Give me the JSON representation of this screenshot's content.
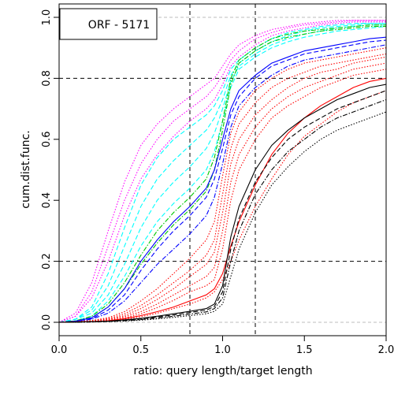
{
  "chart_data": {
    "type": "line",
    "legend_text": "ORF - 5171",
    "legend_placement": "top-left",
    "xlabel": "ratio: query length/target length",
    "ylabel": "cum.dist.func.",
    "xlim": [
      0.0,
      2.0
    ],
    "ylim": [
      0.0,
      1.0
    ],
    "x_ticks": [
      0.0,
      0.5,
      1.0,
      1.5,
      2.0
    ],
    "x_tick_labels": [
      "0.0",
      "0.5",
      "1.0",
      "1.5",
      "2.0"
    ],
    "y_ticks": [
      0.0,
      0.2,
      0.4,
      0.6,
      0.8,
      1.0
    ],
    "y_tick_labels": [
      "0.0",
      "0.2",
      "0.4",
      "0.6",
      "0.8",
      "1.0"
    ],
    "reference_lines": {
      "vertical_x": [
        0.8,
        1.2
      ],
      "horizontal_y": [
        0.2,
        0.8
      ],
      "light_horizontal_y": [
        0.0,
        1.0
      ]
    },
    "x": [
      0,
      0.1,
      0.2,
      0.3,
      0.4,
      0.5,
      0.6,
      0.7,
      0.8,
      0.9,
      0.95,
      1.0,
      1.05,
      1.1,
      1.2,
      1.3,
      1.4,
      1.5,
      1.6,
      1.7,
      1.8,
      1.9,
      2.0
    ],
    "series": [
      {
        "color": "#ff00ff",
        "dash": "dotted",
        "values": [
          0.0,
          0.03,
          0.13,
          0.3,
          0.46,
          0.58,
          0.65,
          0.7,
          0.74,
          0.78,
          0.8,
          0.84,
          0.88,
          0.91,
          0.94,
          0.96,
          0.97,
          0.98,
          0.985,
          0.99,
          0.99,
          0.99,
          0.99
        ]
      },
      {
        "color": "#ff00ff",
        "dash": "dotted",
        "values": [
          0.0,
          0.02,
          0.1,
          0.25,
          0.4,
          0.52,
          0.6,
          0.66,
          0.7,
          0.74,
          0.77,
          0.81,
          0.86,
          0.89,
          0.93,
          0.95,
          0.965,
          0.975,
          0.98,
          0.985,
          0.99,
          0.99,
          0.99
        ]
      },
      {
        "color": "#ff00ff",
        "dash": "dotted",
        "values": [
          0.0,
          0.02,
          0.08,
          0.2,
          0.35,
          0.47,
          0.55,
          0.61,
          0.66,
          0.7,
          0.73,
          0.78,
          0.84,
          0.87,
          0.91,
          0.94,
          0.955,
          0.965,
          0.975,
          0.98,
          0.985,
          0.985,
          0.985
        ]
      },
      {
        "color": "#00ffff",
        "dash": "dashed",
        "values": [
          0.0,
          0.01,
          0.05,
          0.16,
          0.31,
          0.45,
          0.54,
          0.6,
          0.64,
          0.68,
          0.71,
          0.76,
          0.83,
          0.86,
          0.9,
          0.93,
          0.95,
          0.96,
          0.97,
          0.975,
          0.98,
          0.98,
          0.98
        ]
      },
      {
        "color": "#00ffff",
        "dash": "dashed",
        "values": [
          0.0,
          0.01,
          0.04,
          0.12,
          0.25,
          0.38,
          0.47,
          0.53,
          0.58,
          0.63,
          0.67,
          0.73,
          0.81,
          0.85,
          0.89,
          0.92,
          0.94,
          0.955,
          0.965,
          0.97,
          0.975,
          0.98,
          0.98
        ]
      },
      {
        "color": "#00ffff",
        "dash": "dashed",
        "values": [
          0.0,
          0.01,
          0.03,
          0.09,
          0.19,
          0.31,
          0.4,
          0.46,
          0.51,
          0.57,
          0.62,
          0.7,
          0.79,
          0.84,
          0.88,
          0.91,
          0.93,
          0.945,
          0.955,
          0.965,
          0.97,
          0.975,
          0.975
        ]
      },
      {
        "color": "#00ffff",
        "dash": "dashed",
        "values": [
          0.0,
          0.005,
          0.02,
          0.07,
          0.15,
          0.25,
          0.33,
          0.39,
          0.44,
          0.5,
          0.56,
          0.66,
          0.77,
          0.83,
          0.87,
          0.9,
          0.92,
          0.935,
          0.945,
          0.955,
          0.96,
          0.965,
          0.97
        ]
      },
      {
        "color": "#00c800",
        "dash": "dashdot",
        "values": [
          0.0,
          0.005,
          0.02,
          0.06,
          0.13,
          0.22,
          0.3,
          0.36,
          0.41,
          0.47,
          0.54,
          0.66,
          0.8,
          0.86,
          0.9,
          0.93,
          0.945,
          0.955,
          0.96,
          0.965,
          0.97,
          0.975,
          0.975
        ]
      },
      {
        "color": "#00c800",
        "dash": "dashdot",
        "values": [
          0.0,
          0.004,
          0.015,
          0.05,
          0.11,
          0.19,
          0.26,
          0.32,
          0.37,
          0.43,
          0.5,
          0.63,
          0.78,
          0.85,
          0.89,
          0.92,
          0.935,
          0.945,
          0.955,
          0.96,
          0.965,
          0.97,
          0.97
        ]
      },
      {
        "color": "#0000ff",
        "dash": "solid",
        "values": [
          0.0,
          0.004,
          0.015,
          0.05,
          0.11,
          0.2,
          0.27,
          0.33,
          0.38,
          0.44,
          0.5,
          0.6,
          0.7,
          0.76,
          0.81,
          0.85,
          0.87,
          0.89,
          0.9,
          0.91,
          0.92,
          0.93,
          0.935
        ]
      },
      {
        "color": "#0000ff",
        "dash": "dashed",
        "values": [
          0.0,
          0.003,
          0.012,
          0.04,
          0.09,
          0.17,
          0.24,
          0.3,
          0.35,
          0.41,
          0.47,
          0.57,
          0.68,
          0.74,
          0.8,
          0.84,
          0.86,
          0.88,
          0.89,
          0.9,
          0.91,
          0.92,
          0.925
        ]
      },
      {
        "color": "#0000ff",
        "dash": "dashdot",
        "values": [
          0.0,
          0.003,
          0.01,
          0.03,
          0.07,
          0.13,
          0.19,
          0.24,
          0.29,
          0.35,
          0.41,
          0.52,
          0.64,
          0.71,
          0.77,
          0.81,
          0.84,
          0.86,
          0.87,
          0.88,
          0.89,
          0.9,
          0.91
        ]
      },
      {
        "color": "#ff0000",
        "dash": "dotted",
        "values": [
          0.0,
          0.002,
          0.006,
          0.015,
          0.035,
          0.07,
          0.11,
          0.16,
          0.21,
          0.27,
          0.33,
          0.48,
          0.62,
          0.69,
          0.76,
          0.8,
          0.83,
          0.85,
          0.86,
          0.87,
          0.88,
          0.89,
          0.9
        ]
      },
      {
        "color": "#ff0000",
        "dash": "dotted",
        "values": [
          0.0,
          0.002,
          0.005,
          0.012,
          0.028,
          0.055,
          0.09,
          0.13,
          0.17,
          0.22,
          0.27,
          0.42,
          0.57,
          0.65,
          0.72,
          0.77,
          0.8,
          0.82,
          0.84,
          0.85,
          0.86,
          0.87,
          0.88
        ]
      },
      {
        "color": "#ff0000",
        "dash": "dotted",
        "values": [
          0.0,
          0.001,
          0.004,
          0.01,
          0.022,
          0.045,
          0.075,
          0.11,
          0.15,
          0.19,
          0.23,
          0.36,
          0.52,
          0.6,
          0.68,
          0.73,
          0.77,
          0.8,
          0.82,
          0.83,
          0.85,
          0.86,
          0.87
        ]
      },
      {
        "color": "#ff0000",
        "dash": "dotted",
        "values": [
          0.0,
          0.001,
          0.003,
          0.008,
          0.018,
          0.035,
          0.06,
          0.09,
          0.12,
          0.15,
          0.18,
          0.3,
          0.46,
          0.55,
          0.64,
          0.7,
          0.74,
          0.77,
          0.79,
          0.81,
          0.83,
          0.84,
          0.85
        ]
      },
      {
        "color": "#ff0000",
        "dash": "dotted",
        "values": [
          0.0,
          0.001,
          0.002,
          0.006,
          0.014,
          0.028,
          0.048,
          0.072,
          0.1,
          0.12,
          0.14,
          0.24,
          0.4,
          0.5,
          0.6,
          0.67,
          0.71,
          0.74,
          0.77,
          0.79,
          0.81,
          0.82,
          0.83
        ]
      },
      {
        "color": "#ff0000",
        "dash": "solid",
        "values": [
          0.0,
          0.001,
          0.002,
          0.005,
          0.012,
          0.022,
          0.035,
          0.05,
          0.07,
          0.09,
          0.11,
          0.16,
          0.25,
          0.33,
          0.45,
          0.55,
          0.62,
          0.67,
          0.71,
          0.74,
          0.77,
          0.79,
          0.8
        ]
      },
      {
        "color": "#ff0000",
        "dash": "dotted",
        "values": [
          0.0,
          0.001,
          0.002,
          0.004,
          0.01,
          0.018,
          0.03,
          0.045,
          0.06,
          0.08,
          0.1,
          0.14,
          0.2,
          0.27,
          0.38,
          0.47,
          0.55,
          0.61,
          0.65,
          0.69,
          0.72,
          0.74,
          0.76
        ]
      },
      {
        "color": "#000000",
        "dash": "solid",
        "values": [
          0.0,
          0.001,
          0.002,
          0.004,
          0.008,
          0.013,
          0.02,
          0.028,
          0.036,
          0.045,
          0.06,
          0.12,
          0.28,
          0.38,
          0.5,
          0.58,
          0.63,
          0.67,
          0.7,
          0.73,
          0.75,
          0.77,
          0.78
        ]
      },
      {
        "color": "#000000",
        "dash": "dashed",
        "values": [
          0.0,
          0.001,
          0.002,
          0.003,
          0.006,
          0.011,
          0.017,
          0.024,
          0.032,
          0.04,
          0.052,
          0.1,
          0.24,
          0.34,
          0.46,
          0.54,
          0.6,
          0.64,
          0.67,
          0.7,
          0.72,
          0.74,
          0.76
        ]
      },
      {
        "color": "#000000",
        "dash": "dashdot",
        "values": [
          0.0,
          0.0,
          0.001,
          0.003,
          0.005,
          0.009,
          0.014,
          0.02,
          0.027,
          0.034,
          0.045,
          0.08,
          0.2,
          0.3,
          0.42,
          0.5,
          0.56,
          0.6,
          0.64,
          0.67,
          0.69,
          0.71,
          0.73
        ]
      },
      {
        "color": "#000000",
        "dash": "dotted",
        "values": [
          0.0,
          0.0,
          0.001,
          0.002,
          0.004,
          0.007,
          0.011,
          0.016,
          0.022,
          0.028,
          0.036,
          0.06,
          0.15,
          0.24,
          0.36,
          0.45,
          0.51,
          0.56,
          0.6,
          0.63,
          0.65,
          0.67,
          0.69
        ]
      }
    ]
  }
}
